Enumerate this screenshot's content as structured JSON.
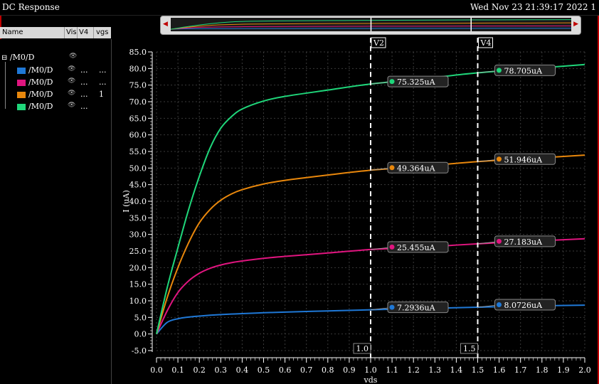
{
  "window": {
    "title": "DC Response",
    "timestamp": "Wed Nov 23 21:39:17 2022  1"
  },
  "legend": {
    "headers": {
      "name": "Name",
      "vis": "Vis",
      "v4": "V4",
      "vgs": "vgs"
    },
    "group_label": "/M0/D",
    "rows": [
      {
        "name": "/M0/D",
        "color": "#1f78d6",
        "v4": "...",
        "vgs": "..."
      },
      {
        "name": "/M0/D",
        "color": "#e0157f",
        "v4": "...",
        "vgs": "..."
      },
      {
        "name": "/M0/D",
        "color": "#e8870c",
        "v4": "...",
        "vgs": "1"
      },
      {
        "name": "/M0/D",
        "color": "#1fd67a",
        "v4": "...",
        "vgs": ""
      }
    ]
  },
  "chart_data": {
    "type": "line",
    "xlabel": "vds",
    "ylabel": "I (uA)",
    "xlim": [
      0.0,
      2.0
    ],
    "ylim": [
      -5.0,
      85.0
    ],
    "xticks": [
      "0.0",
      "0.1",
      "0.2",
      "0.3",
      "0.4",
      "0.5",
      "0.6",
      "0.7",
      "0.8",
      "0.9",
      "1.0",
      "1.1",
      "1.2",
      "1.3",
      "1.4",
      "1.5",
      "1.6",
      "1.7",
      "1.8",
      "1.9",
      "2.0"
    ],
    "yticks": [
      "-5.0",
      "0.0",
      "5.0",
      "10.0",
      "15.0",
      "20.0",
      "25.0",
      "30.0",
      "35.0",
      "40.0",
      "45.0",
      "50.0",
      "55.0",
      "60.0",
      "65.0",
      "70.0",
      "75.0",
      "80.0",
      "85.0"
    ],
    "grid": true,
    "x": [
      0.0,
      0.05,
      0.1,
      0.15,
      0.2,
      0.25,
      0.3,
      0.35,
      0.4,
      0.5,
      0.6,
      0.8,
      1.0,
      1.2,
      1.5,
      1.8,
      2.0
    ],
    "series": [
      {
        "color": "#1f78d6",
        "values": [
          0.0,
          3.5,
          4.6,
          5.1,
          5.4,
          5.65,
          5.85,
          6.0,
          6.15,
          6.4,
          6.6,
          6.95,
          7.29,
          7.6,
          8.07,
          8.5,
          8.7
        ]
      },
      {
        "color": "#e0157f",
        "values": [
          0.0,
          7.0,
          12.5,
          16.0,
          18.3,
          19.8,
          20.8,
          21.5,
          22.0,
          22.8,
          23.4,
          24.4,
          25.46,
          26.0,
          27.18,
          28.1,
          28.7
        ]
      },
      {
        "color": "#e8870c",
        "values": [
          0.0,
          11.0,
          20.0,
          27.5,
          33.5,
          37.5,
          40.3,
          42.2,
          43.5,
          45.2,
          46.3,
          47.9,
          49.36,
          50.3,
          51.95,
          53.1,
          53.9
        ]
      },
      {
        "color": "#1fd67a",
        "values": [
          0.0,
          14.0,
          26.0,
          37.5,
          47.5,
          56.0,
          62.0,
          65.5,
          67.8,
          70.2,
          71.6,
          73.5,
          75.33,
          76.6,
          78.7,
          80.2,
          81.2
        ]
      }
    ],
    "markers": [
      {
        "name": "V2",
        "x": 1.0,
        "x_label": "1.0",
        "points": [
          {
            "y": 75.325,
            "label": "75.325uA",
            "color": "#1fd67a"
          },
          {
            "y": 49.364,
            "label": "49.364uA",
            "color": "#e8870c"
          },
          {
            "y": 25.455,
            "label": "25.455uA",
            "color": "#e0157f"
          },
          {
            "y": 7.2936,
            "label": "7.2936uA",
            "color": "#1f78d6"
          }
        ]
      },
      {
        "name": "V4",
        "x": 1.5,
        "x_label": "1.5",
        "points": [
          {
            "y": 78.705,
            "label": "78.705uA",
            "color": "#1fd67a"
          },
          {
            "y": 51.946,
            "label": "51.946uA",
            "color": "#e8870c"
          },
          {
            "y": 27.183,
            "label": "27.183uA",
            "color": "#e0157f"
          },
          {
            "y": 8.0726,
            "label": "8.0726uA",
            "color": "#1f78d6"
          }
        ]
      }
    ]
  }
}
